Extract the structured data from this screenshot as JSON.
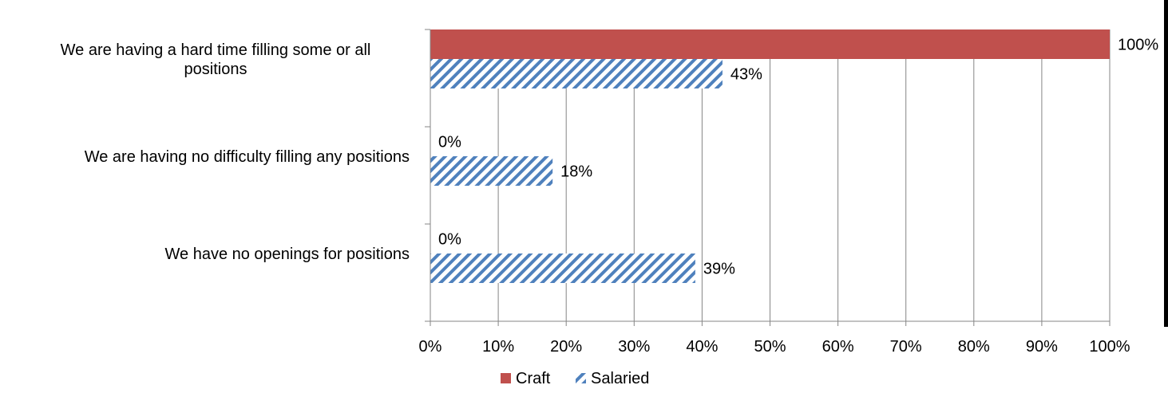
{
  "chart_data": {
    "type": "bar",
    "orientation": "horizontal",
    "categories": [
      [
        "We are having a hard time filling some or all",
        "positions"
      ],
      [
        "We are having no difficulty filling any positions"
      ],
      [
        "We have no openings for positions"
      ]
    ],
    "series": [
      {
        "name": "Craft",
        "values": [
          100,
          0,
          0
        ],
        "color": "#c0504d",
        "fill": "solid"
      },
      {
        "name": "Salaried",
        "values": [
          43,
          18,
          39
        ],
        "color": "#4f81bd",
        "fill": "diagonal-hatch"
      }
    ],
    "data_labels": [
      [
        "100%",
        "0%",
        "0%"
      ],
      [
        "43%",
        "18%",
        "39%"
      ]
    ],
    "x_ticks": [
      0,
      10,
      20,
      30,
      40,
      50,
      60,
      70,
      80,
      90,
      100
    ],
    "x_tick_suffix": "%",
    "xlim": [
      0,
      100
    ],
    "grid": "vertical",
    "legend_position": "bottom"
  }
}
